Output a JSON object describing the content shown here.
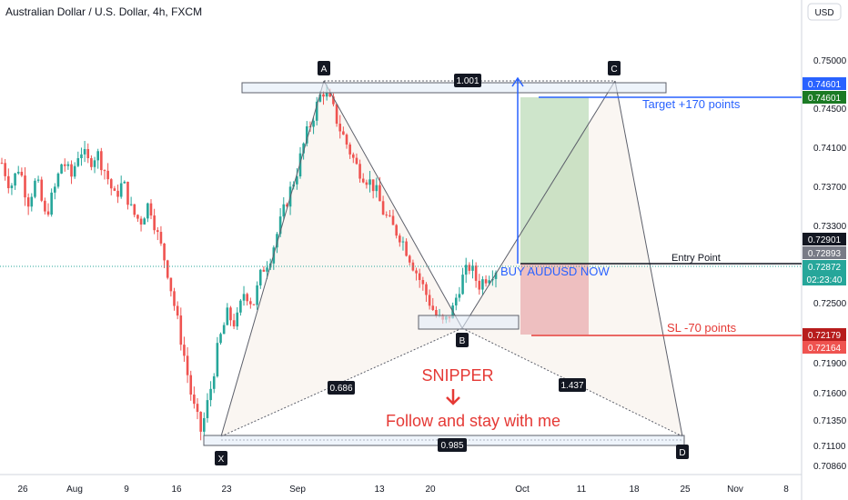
{
  "header": {
    "title": "Australian Dollar / U.S. Dollar, 4h, FXCM",
    "currency": "USD"
  },
  "chart_data": {
    "type": "candlestick",
    "symbol": "AUDUSD",
    "timeframe": "4h",
    "price_axis": {
      "ticks": [
        "0.75000",
        "0.74500",
        "0.74100",
        "0.73700",
        "0.73300",
        "0.72500",
        "0.71900",
        "0.71600",
        "0.71350",
        "0.71100",
        "0.70860"
      ]
    },
    "time_axis": {
      "ticks": [
        "26",
        "Aug",
        "9",
        "16",
        "23",
        "Sep",
        "13",
        "20",
        "Oct",
        "11",
        "18",
        "25",
        "Nov",
        "8"
      ]
    },
    "price_tags": [
      {
        "value": "0.74601",
        "color": "#2962ff"
      },
      {
        "value": "0.74601",
        "color": "#1b7a24"
      },
      {
        "value": "0.72901",
        "color": "#131722"
      },
      {
        "value": "0.72893",
        "color": "#787b86"
      },
      {
        "value": "0.72872",
        "color": "#26a69a"
      },
      {
        "value": "02:23:40",
        "color": "#26a69a"
      },
      {
        "value": "0.72179",
        "color": "#b71c1c"
      },
      {
        "value": "0.72164",
        "color": "#ef5350"
      }
    ],
    "pattern_points": [
      {
        "label": "X",
        "price": 0.711
      },
      {
        "label": "A",
        "price": 0.7475
      },
      {
        "label": "B",
        "price": 0.722
      },
      {
        "label": "C",
        "price": 0.7475
      },
      {
        "label": "D",
        "price": 0.711
      }
    ],
    "ratios": [
      "1.001",
      "0.686",
      "1.437",
      "0.985"
    ],
    "levels": {
      "target": 0.74601,
      "entry": 0.72893,
      "stop": 0.72179
    },
    "candles_close_sample": [
      0.7395,
      0.737,
      0.7392,
      0.7355,
      0.7378,
      0.734,
      0.7365,
      0.7398,
      0.738,
      0.741,
      0.7395,
      0.7405,
      0.7385,
      0.736,
      0.7375,
      0.7345,
      0.7335,
      0.7355,
      0.732,
      0.729,
      0.7245,
      0.72,
      0.715,
      0.712,
      0.716,
      0.721,
      0.724,
      0.723,
      0.7265,
      0.725,
      0.7285,
      0.73,
      0.733,
      0.736,
      0.7385,
      0.742,
      0.7445,
      0.747,
      0.7455,
      0.743,
      0.741,
      0.739,
      0.738,
      0.737,
      0.7345,
      0.733,
      0.732,
      0.73,
      0.728,
      0.726,
      0.724,
      0.723,
      0.7245,
      0.7275,
      0.729,
      0.727,
      0.728,
      0.7287
    ]
  },
  "annotations": {
    "point_a": "A",
    "point_b": "B",
    "point_c": "C",
    "point_d": "D",
    "point_x": "X",
    "ratio_top": "1.001",
    "ratio_left": "0.686",
    "ratio_right": "1.437",
    "ratio_bottom": "0.985",
    "target_text": "Target +170 points",
    "entry_text": "Entry Point",
    "buy_text": "BUY AUDUSD NOW",
    "sl_text": "SL -70 points",
    "snipper_text": "SNIPPER",
    "follow_text": "Follow and stay with me"
  }
}
